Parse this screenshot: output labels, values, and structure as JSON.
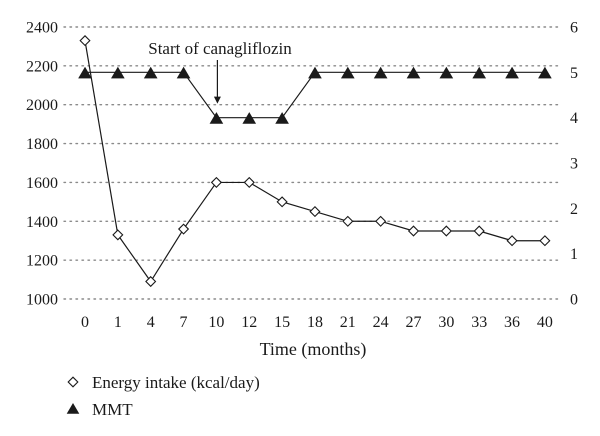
{
  "chart_data": {
    "type": "line",
    "xlabel": "Time (months)",
    "categories": [
      "0",
      "1",
      "4",
      "7",
      "10",
      "12",
      "15",
      "18",
      "21",
      "24",
      "27",
      "30",
      "33",
      "36",
      "40"
    ],
    "y_left": {
      "ylim": [
        1000,
        2400
      ],
      "ticks": [
        1000,
        1200,
        1400,
        1600,
        1800,
        2000,
        2200,
        2400
      ]
    },
    "y_right": {
      "ylim": [
        0,
        6
      ],
      "ticks": [
        0,
        1,
        2,
        3,
        4,
        5,
        6
      ]
    },
    "grid": "horizontal-dotted",
    "series": [
      {
        "name": "Energy intake (kcal/day)",
        "axis": "left",
        "marker": "open-diamond",
        "values": [
          2330,
          1330,
          1090,
          1360,
          1600,
          1600,
          1500,
          1450,
          1400,
          1400,
          1350,
          1350,
          1350,
          1300,
          1300
        ]
      },
      {
        "name": "MMT",
        "axis": "right",
        "marker": "filled-triangle",
        "values": [
          5,
          5,
          5,
          5,
          4,
          4,
          4,
          5,
          5,
          5,
          5,
          5,
          5,
          5,
          5
        ]
      }
    ],
    "annotations": [
      {
        "text": "Start of canagliflozin",
        "at_category": "10"
      }
    ],
    "legend_position": "bottom-left"
  },
  "colors": {
    "line": "#1a1a1a",
    "grid": "#8a8a8a",
    "marker_fill": "#1a1a1a",
    "background": "#ffffff"
  }
}
